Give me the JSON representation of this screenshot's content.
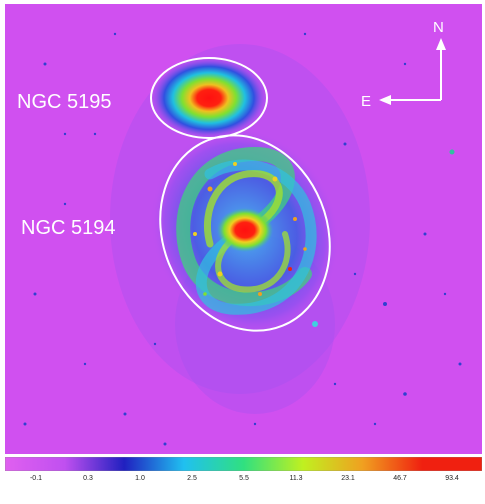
{
  "labels": {
    "ngc5195": "NGC 5195",
    "ngc5194": "NGC 5194",
    "north": "N",
    "east": "E"
  },
  "colorbar": {
    "ticks": [
      "-0.1",
      "0.3",
      "1.0",
      "2.5",
      "5.5",
      "11.3",
      "23.1",
      "46.7",
      "93.4"
    ],
    "colors": [
      "#e060f0",
      "#c050f0",
      "#2020c0",
      "#20c0f0",
      "#30e080",
      "#c0f020",
      "#f0a020",
      "#f02010",
      "#f02010"
    ]
  },
  "colors": {
    "background": "#d050f0",
    "ellipse": "#ffffff"
  }
}
